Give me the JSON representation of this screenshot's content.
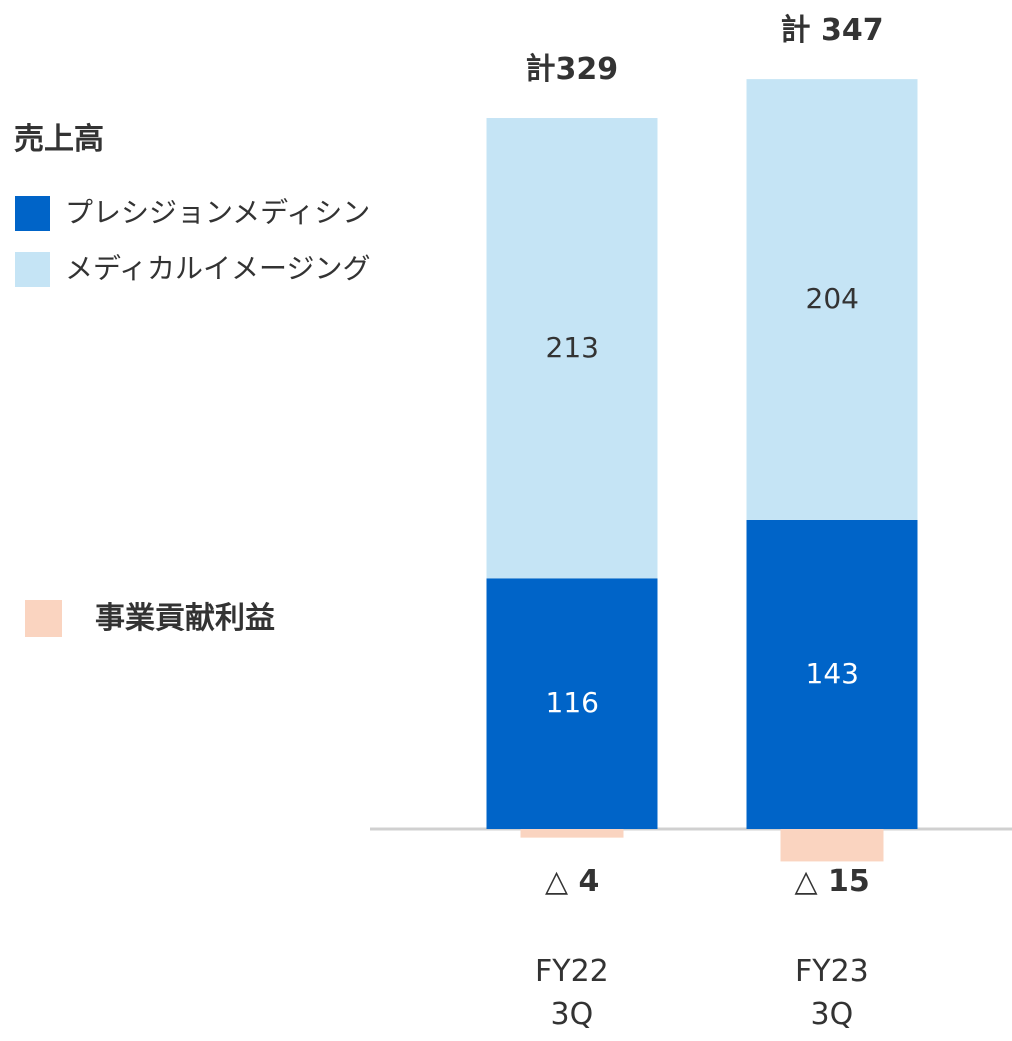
{
  "chart_data": {
    "type": "bar",
    "legend_title": "売上高",
    "categories": [
      "FY22\n3Q",
      "FY23\n3Q"
    ],
    "series": [
      {
        "name": "プレシジョンメディシン",
        "color": "#0064c8",
        "values": [
          116,
          143
        ]
      },
      {
        "name": "メディカルイメージング",
        "color": "#c5e4f5",
        "values": [
          213,
          204
        ]
      },
      {
        "name": "事業貢献利益",
        "color": "#fad4c0",
        "values": [
          -4,
          -15
        ],
        "value_labels": [
          "△ 4",
          "△ 15"
        ]
      }
    ],
    "totals": [
      329,
      347
    ],
    "total_labels": [
      "計329",
      "計 347"
    ]
  }
}
